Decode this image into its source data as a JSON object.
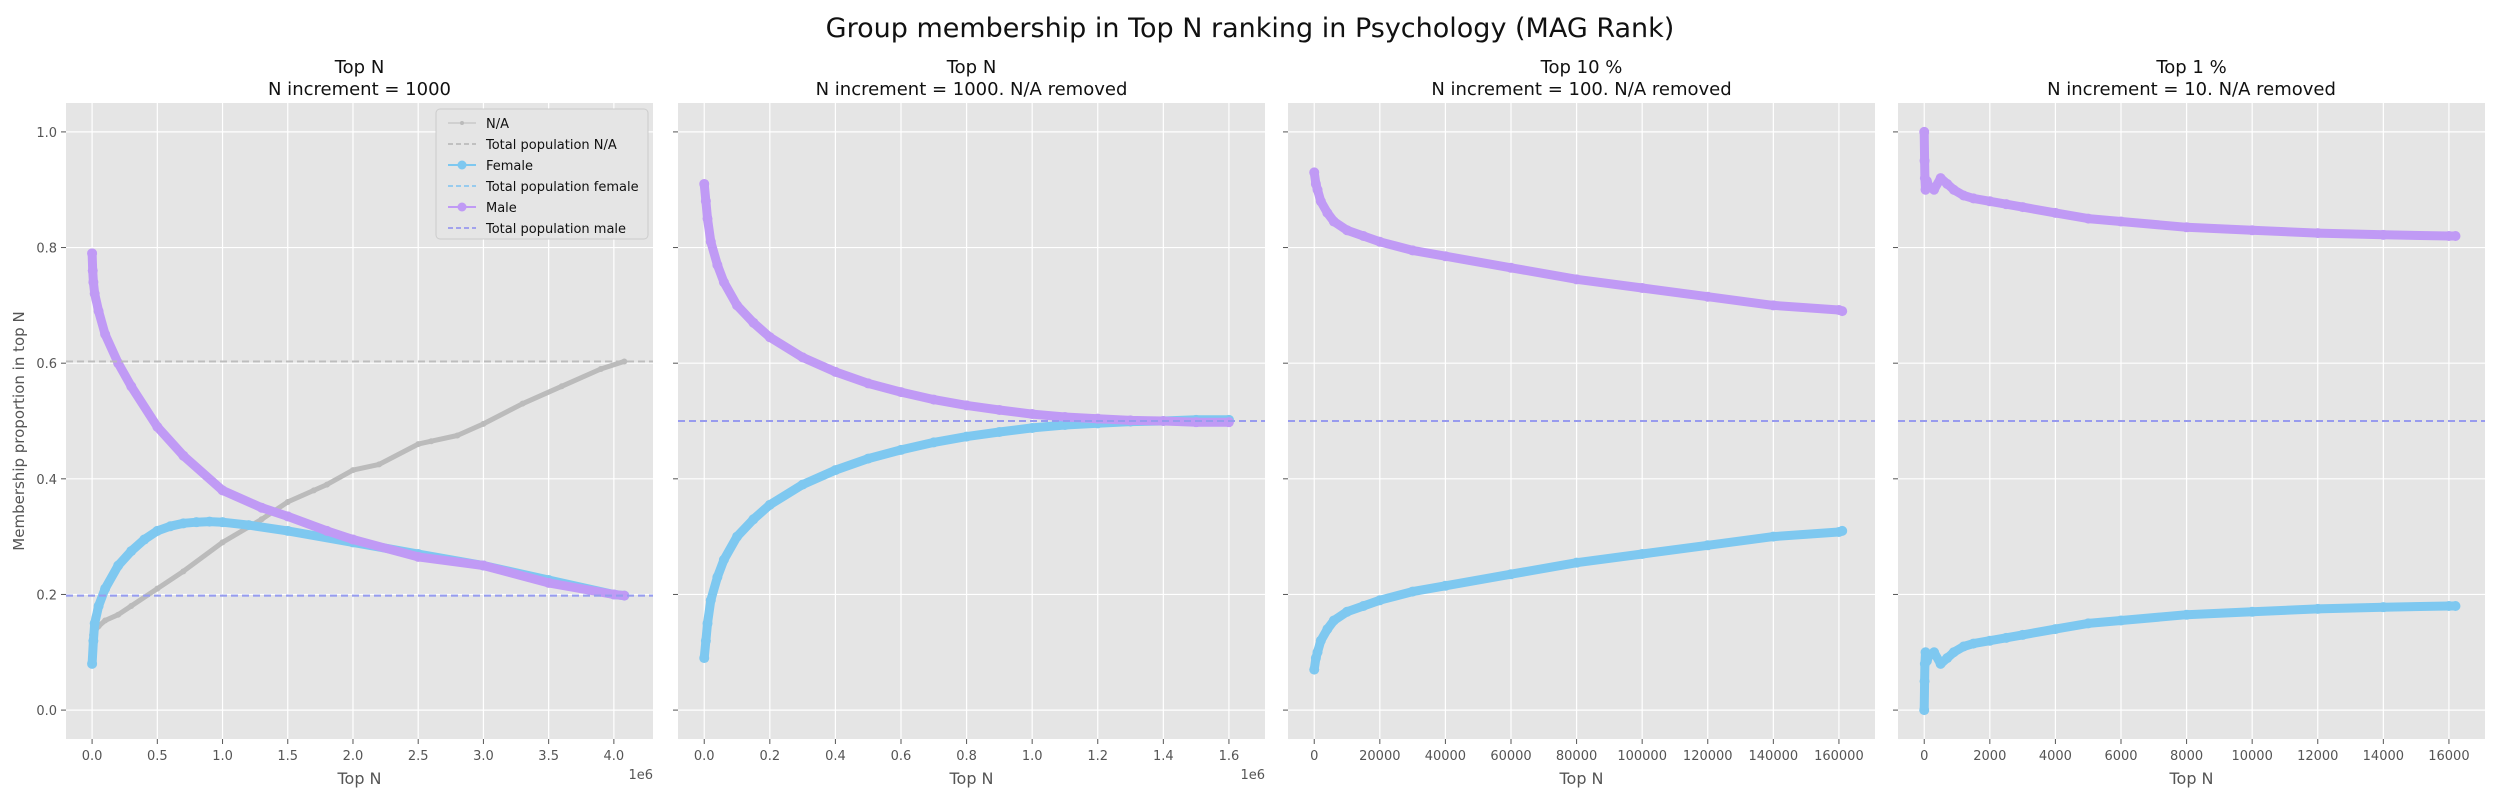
{
  "figure_title": "Group membership in Top N ranking in Psychology (MAG Rank)",
  "shared_ylabel": "Membership proportion in top N",
  "colors": {
    "na": "#bbbbbb",
    "female": "#7ec8f0",
    "male": "#c09af5",
    "total_female": "#8cc7ef",
    "total_male": "#9999ee",
    "total_na": "#bbbbbb",
    "panel_bg": "#e5e5e5",
    "grid": "#ffffff"
  },
  "chart_data": [
    {
      "type": "line",
      "title_line1": "Top N",
      "title_line2": "N increment = 1000",
      "xlabel": "Top N",
      "ylabel": "Membership proportion in top N",
      "x_offset_label": "1e6",
      "xlim": [
        -0.2,
        4.3
      ],
      "ylim": [
        -0.05,
        1.05
      ],
      "xticks": [
        0.0,
        0.5,
        1.0,
        1.5,
        2.0,
        2.5,
        3.0,
        3.5,
        4.0
      ],
      "xtick_labels": [
        "0.0",
        "0.5",
        "1.0",
        "1.5",
        "2.0",
        "2.5",
        "3.0",
        "3.5",
        "4.0"
      ],
      "yticks": [
        0.0,
        0.2,
        0.4,
        0.6,
        0.8,
        1.0
      ],
      "ytick_labels": [
        "0.0",
        "0.2",
        "0.4",
        "0.6",
        "0.8",
        "1.0"
      ],
      "grid": true,
      "legend": {
        "placement": "top-right",
        "entries": [
          {
            "label": "N/A",
            "key": "na",
            "style": "line-marker"
          },
          {
            "label": "Total population N/A",
            "key": "total_na",
            "style": "dashed"
          },
          {
            "label": "Female",
            "key": "female",
            "style": "line-marker"
          },
          {
            "label": "Total population female",
            "key": "total_female",
            "style": "dashed"
          },
          {
            "label": "Male",
            "key": "male",
            "style": "line-marker"
          },
          {
            "label": "Total population male",
            "key": "total_male",
            "style": "dashed"
          }
        ]
      },
      "hlines": [
        {
          "name": "Total population N/A",
          "key": "total_na",
          "y": 0.603
        },
        {
          "name": "Total population female",
          "key": "total_female",
          "y": 0.198
        },
        {
          "name": "Total population male",
          "key": "total_male",
          "y": 0.198
        }
      ],
      "series": [
        {
          "name": "N/A",
          "key": "na",
          "marker_size": 3,
          "x": [
            0.0,
            0.05,
            0.1,
            0.2,
            0.3,
            0.5,
            0.7,
            1.0,
            1.3,
            1.5,
            1.7,
            1.8,
            2.0,
            2.2,
            2.5,
            2.6,
            2.8,
            3.0,
            3.3,
            3.6,
            3.9,
            4.08
          ],
          "y": [
            0.13,
            0.145,
            0.155,
            0.165,
            0.18,
            0.21,
            0.24,
            0.29,
            0.33,
            0.36,
            0.38,
            0.39,
            0.415,
            0.425,
            0.46,
            0.465,
            0.475,
            0.495,
            0.53,
            0.56,
            0.59,
            0.603
          ]
        },
        {
          "name": "Female",
          "key": "female",
          "marker_size": 5,
          "x": [
            0.0,
            0.01,
            0.02,
            0.05,
            0.1,
            0.2,
            0.3,
            0.4,
            0.5,
            0.6,
            0.7,
            0.8,
            0.9,
            1.0,
            1.2,
            1.5,
            2.0,
            2.5,
            3.0,
            3.5,
            4.0,
            4.08
          ],
          "y": [
            0.08,
            0.12,
            0.15,
            0.18,
            0.21,
            0.25,
            0.275,
            0.295,
            0.31,
            0.318,
            0.323,
            0.325,
            0.326,
            0.325,
            0.32,
            0.31,
            0.29,
            0.27,
            0.25,
            0.225,
            0.2,
            0.198
          ]
        },
        {
          "name": "Male",
          "key": "male",
          "marker_size": 5,
          "x": [
            0.0,
            0.005,
            0.01,
            0.02,
            0.05,
            0.1,
            0.2,
            0.3,
            0.5,
            0.7,
            1.0,
            1.3,
            1.5,
            1.8,
            2.0,
            2.5,
            3.0,
            3.5,
            4.0,
            4.08
          ],
          "y": [
            0.79,
            0.76,
            0.74,
            0.72,
            0.69,
            0.65,
            0.6,
            0.56,
            0.49,
            0.44,
            0.38,
            0.35,
            0.335,
            0.31,
            0.295,
            0.265,
            0.25,
            0.22,
            0.2,
            0.198
          ]
        }
      ]
    },
    {
      "type": "line",
      "title_line1": "Top N",
      "title_line2": "N increment = 1000. N/A removed",
      "xlabel": "Top N",
      "x_offset_label": "1e6",
      "xlim": [
        -0.08,
        1.71
      ],
      "ylim": [
        -0.05,
        1.05
      ],
      "xticks": [
        0.0,
        0.2,
        0.4,
        0.6,
        0.8,
        1.0,
        1.2,
        1.4,
        1.6
      ],
      "xtick_labels": [
        "0.0",
        "0.2",
        "0.4",
        "0.6",
        "0.8",
        "1.0",
        "1.2",
        "1.4",
        "1.6"
      ],
      "yticks": [
        0.0,
        0.2,
        0.4,
        0.6,
        0.8,
        1.0
      ],
      "ytick_labels": [],
      "grid": true,
      "hlines": [
        {
          "name": "Total population female",
          "key": "total_female",
          "y": 0.5
        },
        {
          "name": "Total population male",
          "key": "total_male",
          "y": 0.5
        }
      ],
      "series": [
        {
          "name": "Female",
          "key": "female",
          "marker_size": 5,
          "x": [
            0.0,
            0.005,
            0.01,
            0.02,
            0.04,
            0.06,
            0.1,
            0.15,
            0.2,
            0.3,
            0.4,
            0.5,
            0.6,
            0.7,
            0.8,
            0.9,
            1.0,
            1.1,
            1.2,
            1.3,
            1.4,
            1.5,
            1.6
          ],
          "y": [
            0.09,
            0.12,
            0.15,
            0.19,
            0.23,
            0.26,
            0.3,
            0.33,
            0.355,
            0.39,
            0.415,
            0.435,
            0.45,
            0.463,
            0.473,
            0.481,
            0.488,
            0.493,
            0.496,
            0.499,
            0.5,
            0.502,
            0.502
          ]
        },
        {
          "name": "Male",
          "key": "male",
          "marker_size": 5,
          "x": [
            0.0,
            0.005,
            0.01,
            0.02,
            0.04,
            0.06,
            0.1,
            0.15,
            0.2,
            0.3,
            0.4,
            0.5,
            0.6,
            0.7,
            0.8,
            0.9,
            1.0,
            1.1,
            1.2,
            1.3,
            1.4,
            1.5,
            1.6
          ],
          "y": [
            0.91,
            0.88,
            0.85,
            0.81,
            0.77,
            0.74,
            0.7,
            0.67,
            0.645,
            0.61,
            0.585,
            0.565,
            0.55,
            0.537,
            0.527,
            0.519,
            0.512,
            0.507,
            0.504,
            0.501,
            0.5,
            0.498,
            0.498
          ]
        }
      ]
    },
    {
      "type": "line",
      "title_line1": "Top 10 %",
      "title_line2": "N increment = 100. N/A removed",
      "xlabel": "Top N",
      "xlim": [
        -8000,
        171000
      ],
      "ylim": [
        -0.05,
        1.05
      ],
      "xticks": [
        0,
        20000,
        40000,
        60000,
        80000,
        100000,
        120000,
        140000,
        160000
      ],
      "xtick_labels": [
        "0",
        "20000",
        "40000",
        "60000",
        "80000",
        "100000",
        "120000",
        "140000",
        "160000"
      ],
      "yticks": [
        0.0,
        0.2,
        0.4,
        0.6,
        0.8,
        1.0
      ],
      "ytick_labels": [],
      "grid": true,
      "hlines": [
        {
          "name": "Total population female",
          "key": "total_female",
          "y": 0.5
        },
        {
          "name": "Total population male",
          "key": "total_male",
          "y": 0.5
        }
      ],
      "series": [
        {
          "name": "Female",
          "key": "female",
          "marker_size": 5,
          "x": [
            0,
            500,
            1000,
            2000,
            4000,
            6000,
            10000,
            15000,
            20000,
            30000,
            40000,
            60000,
            80000,
            100000,
            120000,
            140000,
            160000,
            161000
          ],
          "y": [
            0.07,
            0.09,
            0.1,
            0.12,
            0.14,
            0.155,
            0.17,
            0.18,
            0.19,
            0.205,
            0.215,
            0.235,
            0.255,
            0.27,
            0.285,
            0.3,
            0.308,
            0.31
          ]
        },
        {
          "name": "Male",
          "key": "male",
          "marker_size": 5,
          "x": [
            0,
            500,
            1000,
            2000,
            4000,
            6000,
            10000,
            15000,
            20000,
            30000,
            40000,
            60000,
            80000,
            100000,
            120000,
            140000,
            160000,
            161000
          ],
          "y": [
            0.93,
            0.91,
            0.9,
            0.88,
            0.86,
            0.845,
            0.83,
            0.82,
            0.81,
            0.795,
            0.785,
            0.765,
            0.745,
            0.73,
            0.715,
            0.7,
            0.692,
            0.69
          ]
        }
      ]
    },
    {
      "type": "line",
      "title_line1": "Top 1 %",
      "title_line2": "N increment = 10. N/A removed",
      "xlabel": "Top N",
      "xlim": [
        -800,
        17100
      ],
      "ylim": [
        -0.05,
        1.05
      ],
      "xticks": [
        0,
        2000,
        4000,
        6000,
        8000,
        10000,
        12000,
        14000,
        16000
      ],
      "xtick_labels": [
        "0",
        "2000",
        "4000",
        "6000",
        "8000",
        "10000",
        "12000",
        "14000",
        "16000"
      ],
      "yticks": [
        0.0,
        0.2,
        0.4,
        0.6,
        0.8,
        1.0
      ],
      "ytick_labels": [],
      "grid": true,
      "hlines": [
        {
          "name": "Total population female",
          "key": "total_female",
          "y": 0.5
        },
        {
          "name": "Total population male",
          "key": "total_male",
          "y": 0.5
        }
      ],
      "series": [
        {
          "name": "Female",
          "key": "female",
          "marker_size": 5,
          "x": [
            0,
            10,
            20,
            40,
            80,
            150,
            300,
            500,
            700,
            900,
            1200,
            1500,
            2000,
            2500,
            3000,
            4000,
            5000,
            6000,
            8000,
            10000,
            12000,
            14000,
            16000,
            16200
          ],
          "y": [
            0.0,
            0.05,
            0.08,
            0.1,
            0.085,
            0.095,
            0.1,
            0.08,
            0.09,
            0.1,
            0.11,
            0.115,
            0.12,
            0.125,
            0.13,
            0.14,
            0.15,
            0.155,
            0.165,
            0.17,
            0.175,
            0.178,
            0.18,
            0.18
          ]
        },
        {
          "name": "Male",
          "key": "male",
          "marker_size": 5,
          "x": [
            0,
            10,
            20,
            40,
            80,
            150,
            300,
            500,
            700,
            900,
            1200,
            1500,
            2000,
            2500,
            3000,
            4000,
            5000,
            6000,
            8000,
            10000,
            12000,
            14000,
            16000,
            16200
          ],
          "y": [
            1.0,
            0.95,
            0.92,
            0.9,
            0.915,
            0.905,
            0.9,
            0.92,
            0.91,
            0.9,
            0.89,
            0.885,
            0.88,
            0.875,
            0.87,
            0.86,
            0.85,
            0.845,
            0.835,
            0.83,
            0.825,
            0.822,
            0.82,
            0.82
          ]
        }
      ]
    }
  ]
}
